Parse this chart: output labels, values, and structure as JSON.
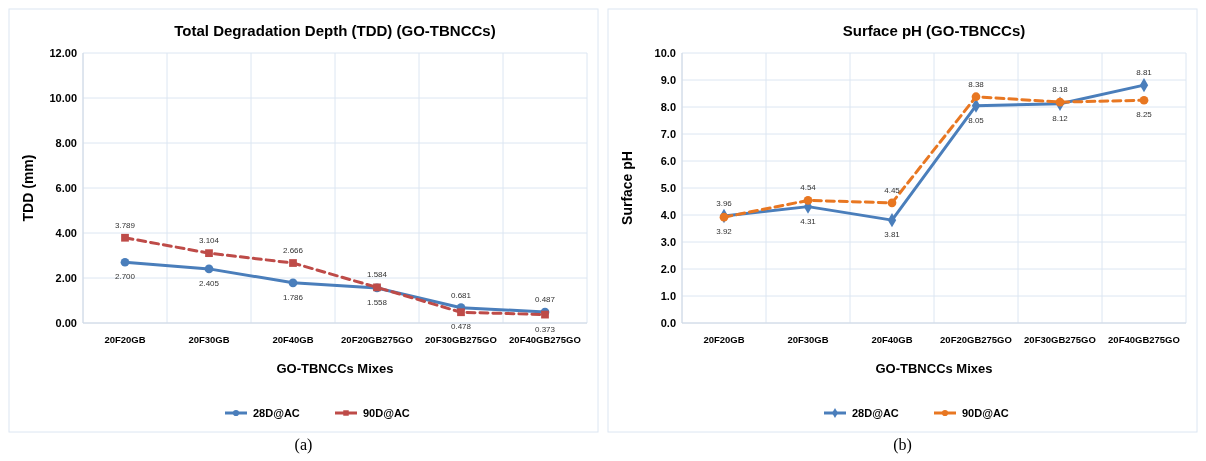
{
  "chart_data": [
    {
      "type": "line",
      "title": "Total Degradation Depth (TDD) (GO-TBNCCs)",
      "xlabel": "GO-TBNCCs Mixes",
      "ylabel": "TDD (mm)",
      "categories": [
        "20F20GB",
        "20F30GB",
        "20F40GB",
        "20F20GB275GO",
        "20F30GB275GO",
        "20F40GB275GO"
      ],
      "series": [
        {
          "name": "28D@AC",
          "color": "#4a7ebb",
          "values": [
            2.7,
            2.405,
            1.786,
            1.558,
            0.681,
            0.487
          ],
          "marker": "circle",
          "line_style": "solid",
          "value_labels": [
            "2.700",
            "2.405",
            "1.786",
            "1.558",
            "0.681",
            "0.487"
          ]
        },
        {
          "name": "90D@AC",
          "color": "#be4b48",
          "values": [
            3.789,
            3.104,
            2.666,
            1.584,
            0.478,
            0.373
          ],
          "marker": "square",
          "line_style": "dashed",
          "value_labels": [
            "3.789",
            "3.104",
            "2.666",
            "1.584",
            "0.478",
            "0.373"
          ]
        }
      ],
      "ylim": [
        0,
        12
      ],
      "yticks": [
        {
          "value": 0,
          "label": "0.00"
        },
        {
          "value": 2,
          "label": "2.00"
        },
        {
          "value": 4,
          "label": "4.00"
        },
        {
          "value": 6,
          "label": "6.00"
        },
        {
          "value": 8,
          "label": "8.00"
        },
        {
          "value": 10,
          "label": "10.00"
        },
        {
          "value": 12,
          "label": "12.00"
        }
      ],
      "grid": true,
      "legend": "bottom",
      "annotations": [
        "(a)"
      ]
    },
    {
      "type": "line",
      "title": "Surface pH (GO-TBNCCs)",
      "xlabel": "GO-TBNCCs Mixes",
      "ylabel": "Surface pH",
      "categories": [
        "20F20GB",
        "20F30GB",
        "20F40GB",
        "20F20GB275GO",
        "20F30GB275GO",
        "20F40GB275GO"
      ],
      "series": [
        {
          "name": "28D@AC",
          "color": "#4a7ebb",
          "values": [
            3.96,
            4.31,
            3.81,
            8.05,
            8.12,
            8.81
          ],
          "marker": "diamond",
          "line_style": "solid",
          "value_labels": [
            "3.96",
            "4.31",
            "3.81",
            "8.05",
            "8.12",
            "8.81"
          ]
        },
        {
          "name": "90D@AC",
          "color": "#e87722",
          "values": [
            3.92,
            4.54,
            4.45,
            8.38,
            8.18,
            8.25
          ],
          "marker": "circle",
          "line_style": "dashed",
          "value_labels": [
            "3.92",
            "4.54",
            "4.45",
            "8.38",
            "8.18",
            "8.25"
          ]
        }
      ],
      "ylim": [
        0,
        10
      ],
      "yticks": [
        {
          "value": 0,
          "label": "0.0"
        },
        {
          "value": 1,
          "label": "1.0"
        },
        {
          "value": 2,
          "label": "2.0"
        },
        {
          "value": 3,
          "label": "3.0"
        },
        {
          "value": 4,
          "label": "4.0"
        },
        {
          "value": 5,
          "label": "5.0"
        },
        {
          "value": 6,
          "label": "6.0"
        },
        {
          "value": 7,
          "label": "7.0"
        },
        {
          "value": 8,
          "label": "8.0"
        },
        {
          "value": 9,
          "label": "9.0"
        },
        {
          "value": 10,
          "label": "10.0"
        }
      ],
      "grid": true,
      "legend": "bottom",
      "annotations": [
        "(b)"
      ]
    }
  ]
}
